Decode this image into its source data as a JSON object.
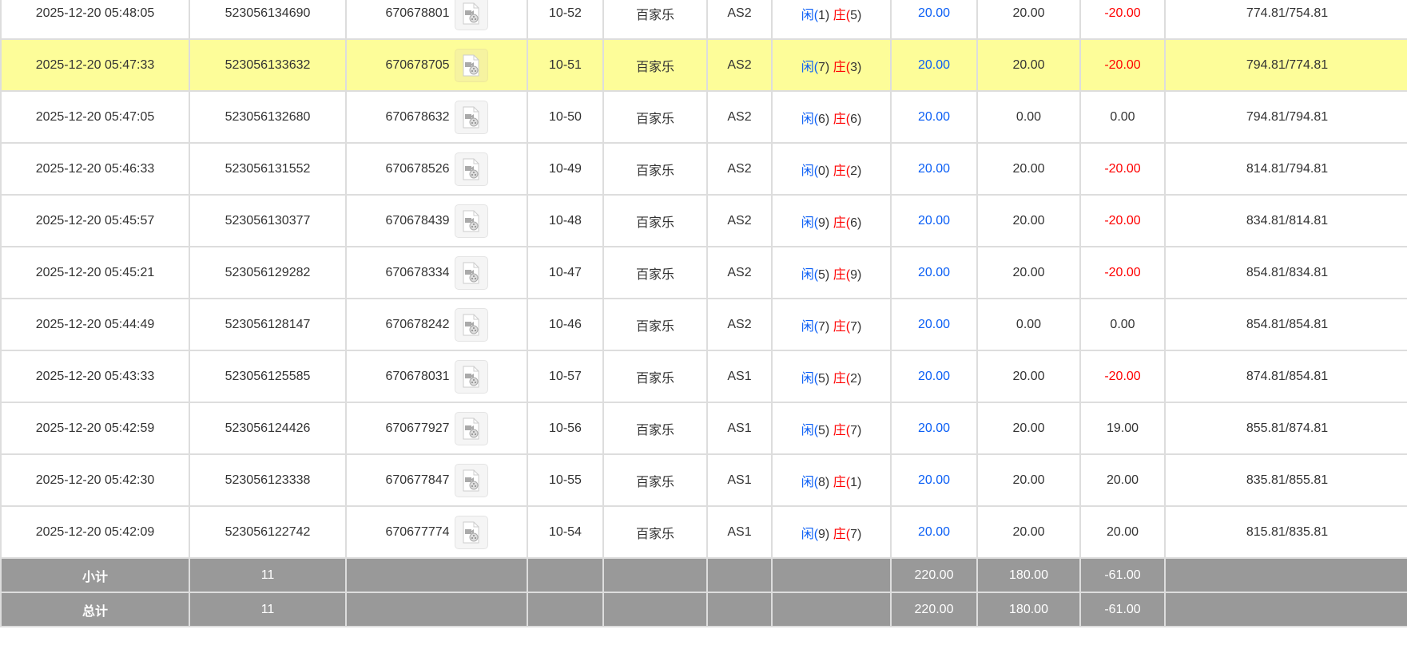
{
  "rows": [
    {
      "time": "2025-12-20 05:48:05",
      "order": "523056134690",
      "round": "670678801",
      "table": "10-52",
      "game": "百家乐",
      "hall": "AS2",
      "player": "闲(1)",
      "banker": "庄(5)",
      "bet": "20.00",
      "valid": "20.00",
      "win": "-20.00",
      "win_neg": true,
      "balance": "774.81/754.81"
    },
    {
      "time": "2025-12-20 05:47:33",
      "order": "523056133632",
      "round": "670678705",
      "table": "10-51",
      "game": "百家乐",
      "hall": "AS2",
      "player": "闲(7)",
      "banker": "庄(3)",
      "bet": "20.00",
      "valid": "20.00",
      "win": "-20.00",
      "win_neg": true,
      "balance": "794.81/774.81",
      "highlight": true
    },
    {
      "time": "2025-12-20 05:47:05",
      "order": "523056132680",
      "round": "670678632",
      "table": "10-50",
      "game": "百家乐",
      "hall": "AS2",
      "player": "闲(6)",
      "banker": "庄(6)",
      "bet": "20.00",
      "valid": "0.00",
      "win": "0.00",
      "win_neg": false,
      "balance": "794.81/794.81"
    },
    {
      "time": "2025-12-20 05:46:33",
      "order": "523056131552",
      "round": "670678526",
      "table": "10-49",
      "game": "百家乐",
      "hall": "AS2",
      "player": "闲(0)",
      "banker": "庄(2)",
      "bet": "20.00",
      "valid": "20.00",
      "win": "-20.00",
      "win_neg": true,
      "balance": "814.81/794.81"
    },
    {
      "time": "2025-12-20 05:45:57",
      "order": "523056130377",
      "round": "670678439",
      "table": "10-48",
      "game": "百家乐",
      "hall": "AS2",
      "player": "闲(9)",
      "banker": "庄(6)",
      "bet": "20.00",
      "valid": "20.00",
      "win": "-20.00",
      "win_neg": true,
      "balance": "834.81/814.81"
    },
    {
      "time": "2025-12-20 05:45:21",
      "order": "523056129282",
      "round": "670678334",
      "table": "10-47",
      "game": "百家乐",
      "hall": "AS2",
      "player": "闲(5)",
      "banker": "庄(9)",
      "bet": "20.00",
      "valid": "20.00",
      "win": "-20.00",
      "win_neg": true,
      "balance": "854.81/834.81"
    },
    {
      "time": "2025-12-20 05:44:49",
      "order": "523056128147",
      "round": "670678242",
      "table": "10-46",
      "game": "百家乐",
      "hall": "AS2",
      "player": "闲(7)",
      "banker": "庄(7)",
      "bet": "20.00",
      "valid": "0.00",
      "win": "0.00",
      "win_neg": false,
      "balance": "854.81/854.81"
    },
    {
      "time": "2025-12-20 05:43:33",
      "order": "523056125585",
      "round": "670678031",
      "table": "10-57",
      "game": "百家乐",
      "hall": "AS1",
      "player": "闲(5)",
      "banker": "庄(2)",
      "bet": "20.00",
      "valid": "20.00",
      "win": "-20.00",
      "win_neg": true,
      "balance": "874.81/854.81"
    },
    {
      "time": "2025-12-20 05:42:59",
      "order": "523056124426",
      "round": "670677927",
      "table": "10-56",
      "game": "百家乐",
      "hall": "AS1",
      "player": "闲(5)",
      "banker": "庄(7)",
      "bet": "20.00",
      "valid": "20.00",
      "win": "19.00",
      "win_neg": false,
      "balance": "855.81/874.81"
    },
    {
      "time": "2025-12-20 05:42:30",
      "order": "523056123338",
      "round": "670677847",
      "table": "10-55",
      "game": "百家乐",
      "hall": "AS1",
      "player": "闲(8)",
      "banker": "庄(1)",
      "bet": "20.00",
      "valid": "20.00",
      "win": "20.00",
      "win_neg": false,
      "balance": "835.81/855.81"
    },
    {
      "time": "2025-12-20 05:42:09",
      "order": "523056122742",
      "round": "670677774",
      "table": "10-54",
      "game": "百家乐",
      "hall": "AS1",
      "player": "闲(9)",
      "banker": "庄(7)",
      "bet": "20.00",
      "valid": "20.00",
      "win": "20.00",
      "win_neg": false,
      "balance": "815.81/835.81"
    }
  ],
  "summary": [
    {
      "label": "小计",
      "count": "11",
      "bet": "220.00",
      "valid": "180.00",
      "win": "-61.00"
    },
    {
      "label": "总计",
      "count": "11",
      "bet": "220.00",
      "valid": "180.00",
      "win": "-61.00"
    }
  ],
  "icons": {
    "replay": "video-file-icon"
  },
  "colors": {
    "highlight": "#fdfd99",
    "player": "#0a5ef5",
    "banker": "#ff0000",
    "summary_bg": "#999999"
  }
}
